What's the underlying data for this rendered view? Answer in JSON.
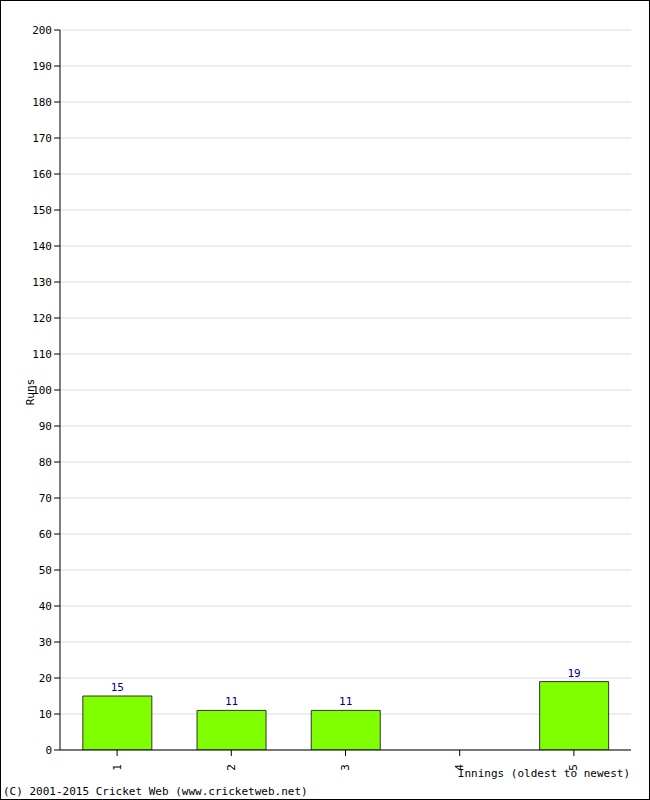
{
  "chart_data": {
    "type": "bar",
    "categories": [
      "1",
      "2",
      "3",
      "4",
      "5"
    ],
    "values": [
      15,
      11,
      11,
      0,
      19
    ],
    "color": "#80ff00",
    "ylim": [
      0,
      200
    ],
    "yticks": [
      0,
      10,
      20,
      30,
      40,
      50,
      60,
      70,
      80,
      90,
      100,
      110,
      120,
      130,
      140,
      150,
      160,
      170,
      180,
      190,
      200
    ],
    "grid": true,
    "data_labels": true,
    "ylabel": "Runs",
    "xlabel": "Innings (oldest to newest)",
    "annotations": [
      "(C) 2001-2015 Cricket Web (www.cricketweb.net)"
    ]
  }
}
